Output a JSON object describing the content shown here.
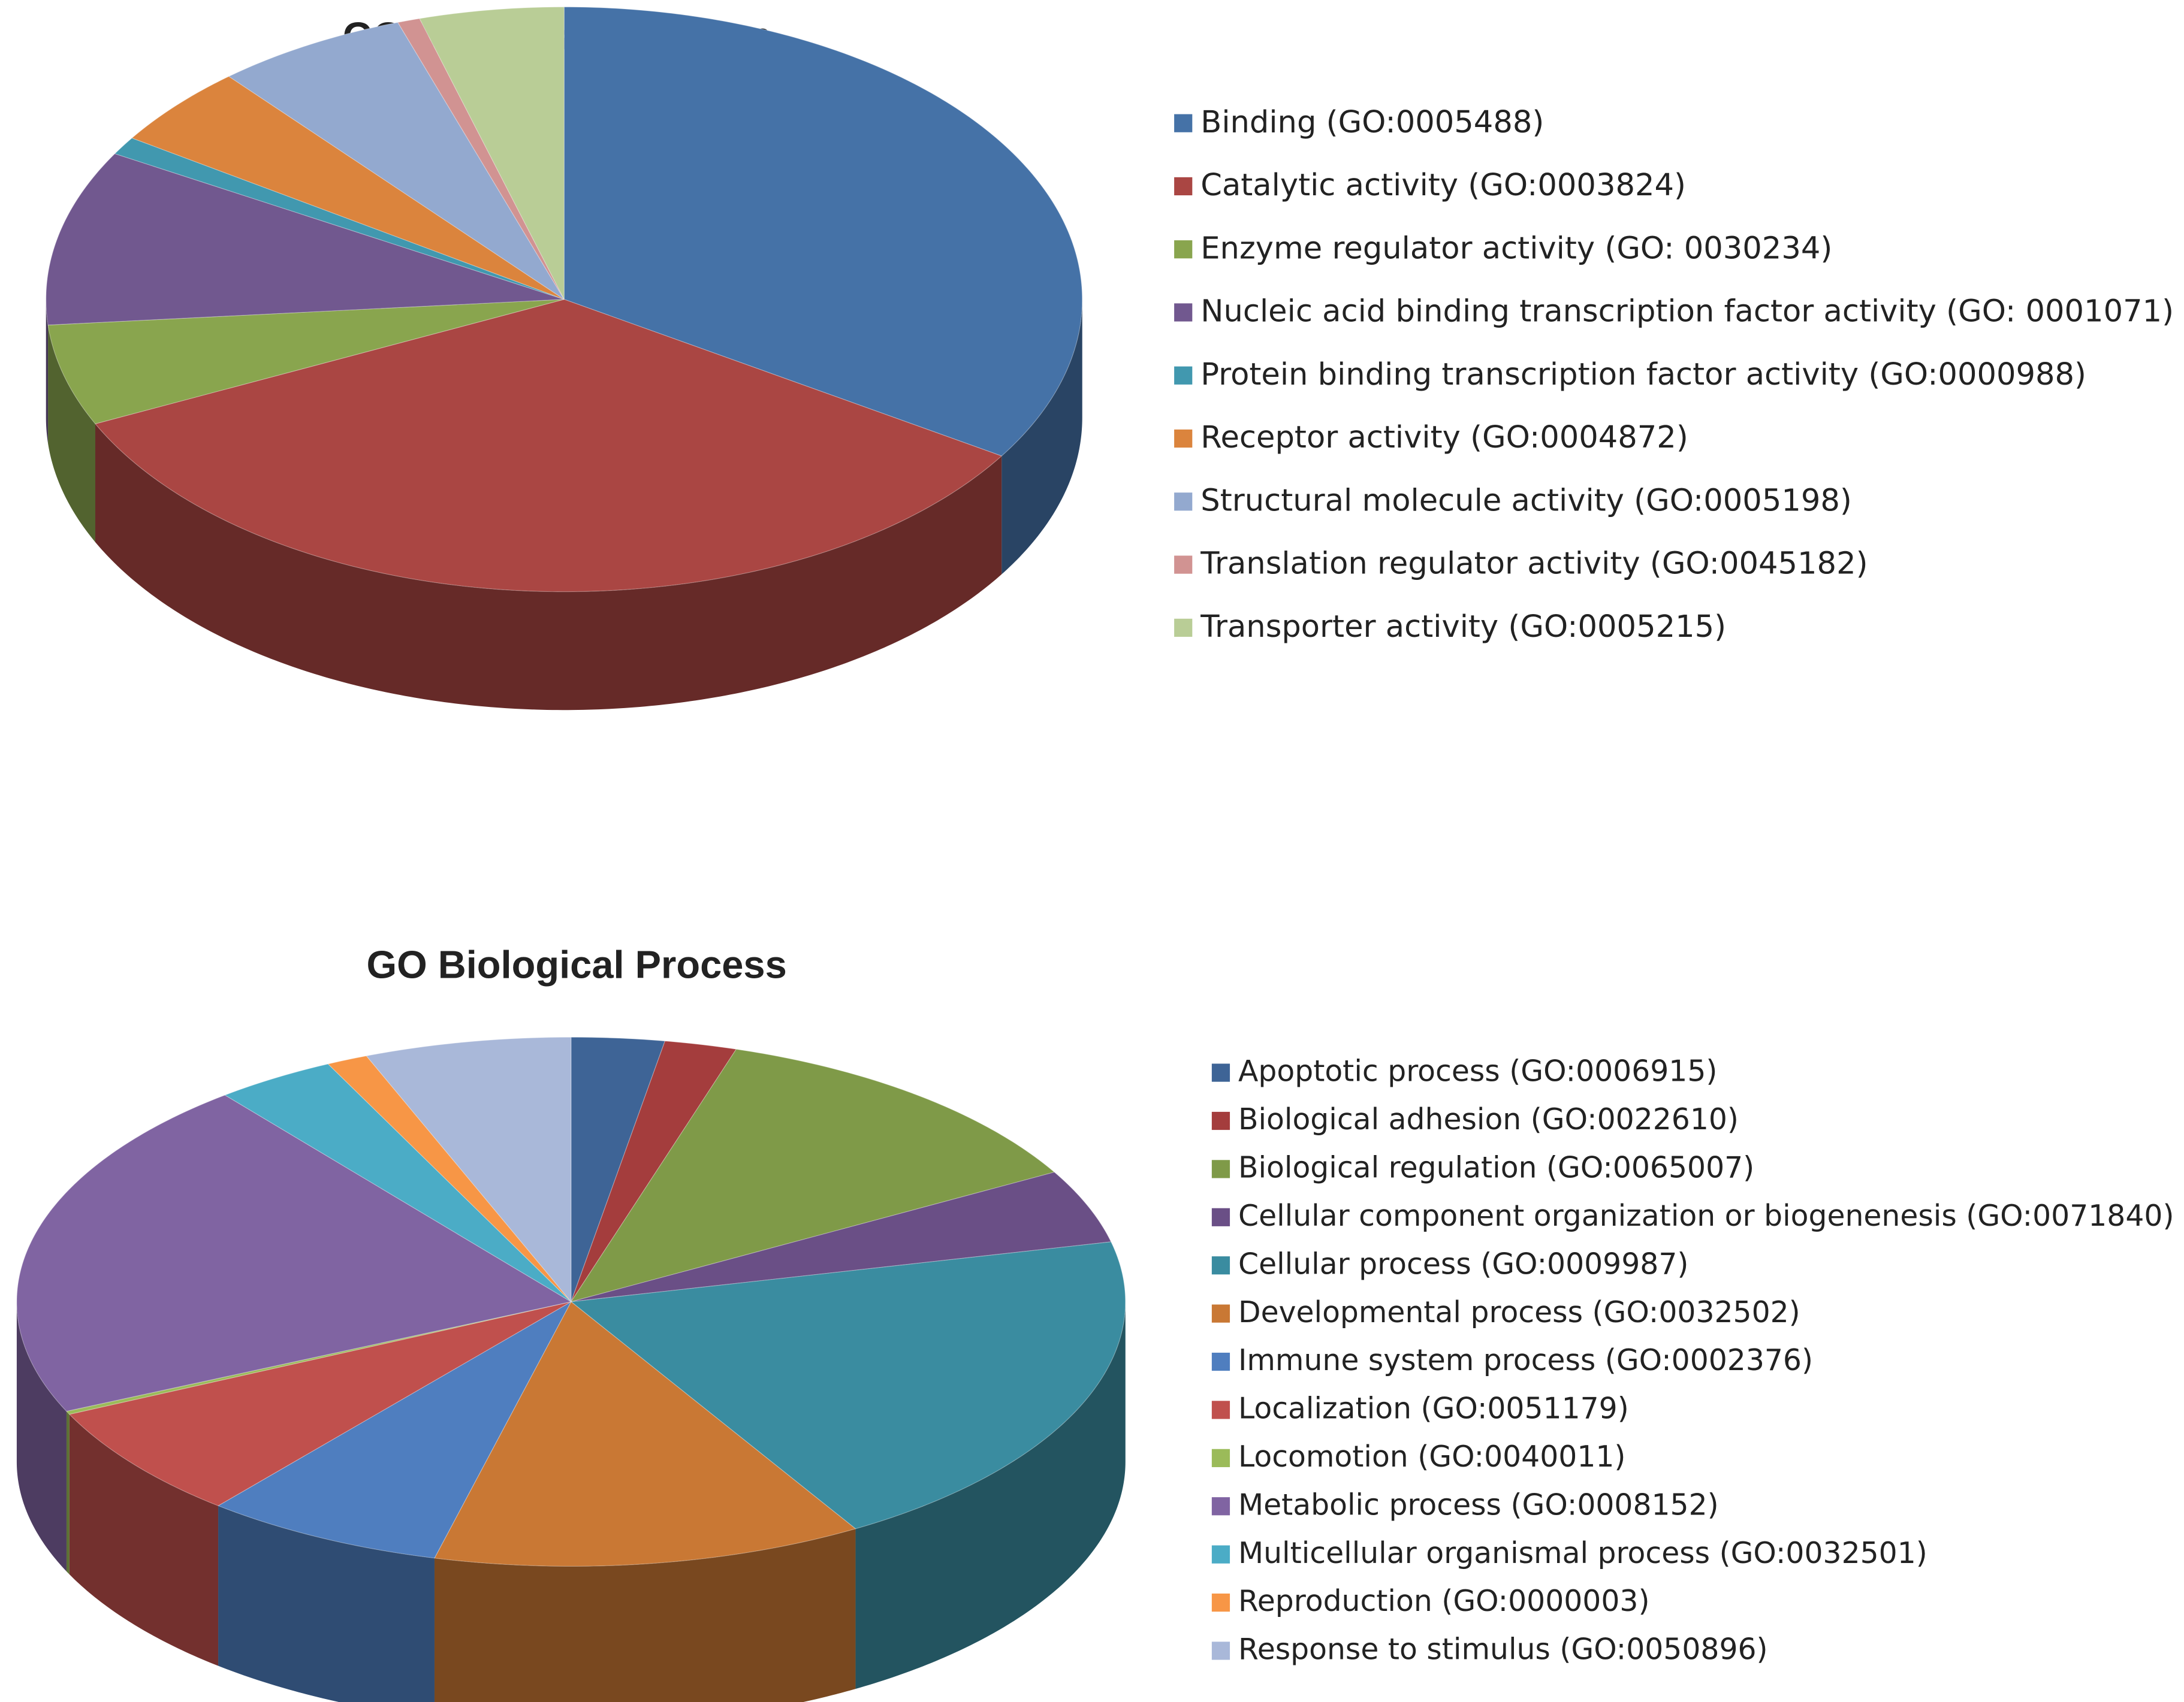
{
  "chart_data": [
    {
      "type": "pie",
      "title": "GO Molecular Function",
      "categories": [
        "Binding (GO:0005488)",
        "Catalytic activity (GO:0003824)",
        "Enzyme regulator activity (GO: 0030234)",
        "Nucleic acid binding transcription factor activity (GO: 0001071)",
        "Protein binding transcription factor activity (GO:0000988)",
        "Receptor activity (GO:0004872)",
        "Structural molecule activity (GO:0005198)",
        "Translation regulator activity (GO:0045182)",
        "Transporter activity (GO:0005215)"
      ],
      "values": [
        34,
        34,
        5.6,
        9.7,
        1,
        4.5,
        6,
        0.7,
        4.5
      ],
      "colors": [
        "#4572A7",
        "#AA4643",
        "#89A54E",
        "#71588F",
        "#4198AF",
        "#DB843D",
        "#93A9CF",
        "#D19392",
        "#B9CD96"
      ],
      "legend": "right"
    },
    {
      "type": "pie",
      "title": "GO Biological Process",
      "categories": [
        "Apoptotic process (GO:0006915)",
        "Biological adhesion (GO:0022610)",
        "Biological regulation (GO:0065007)",
        "Cellular component organization or biogenenesis (GO:0071840)",
        "Cellular process (GO:0009987)",
        "Developmental process (GO:0032502)",
        "Immune system process (GO:0002376)",
        "Localization (GO:0051179)",
        "Locomotion (GO:0040011)",
        "Metabolic process (GO:0008152)",
        "Multicellular organismal process (GO:0032501)",
        "Reproduction (GO:0000003)",
        "Response to stimulus (GO:0050896)"
      ],
      "values": [
        2.7,
        2.1,
        12,
        4.5,
        20,
        12.5,
        7,
        7,
        0.2,
        21,
        3.5,
        1.2,
        6
      ],
      "colors": [
        "#3E6496",
        "#A43D3D",
        "#7F9A48",
        "#6A4F86",
        "#3A8CA0",
        "#C97834",
        "#4F7EBF",
        "#C0504D",
        "#9BBB59",
        "#8064A2",
        "#4BACC6",
        "#F79646",
        "#A9B8D9"
      ],
      "legend": "right"
    }
  ]
}
